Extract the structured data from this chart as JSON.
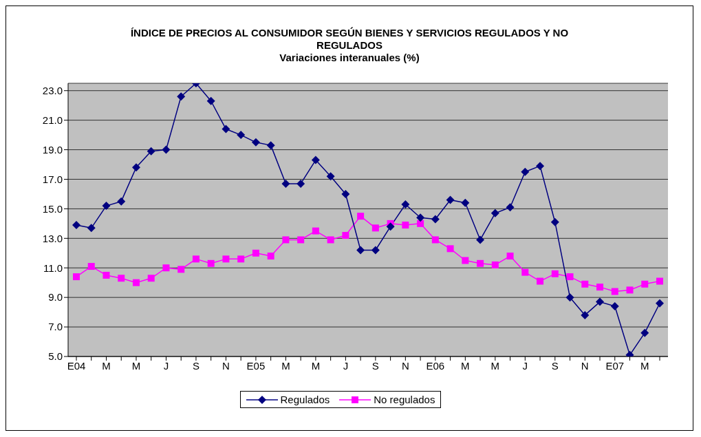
{
  "chart_data": {
    "type": "line",
    "title": "ÍNDICE DE PRECIOS AL CONSUMIDOR SEGÚN BIENES Y SERVICIOS REGULADOS Y NO REGULADOS",
    "subtitle": "Variaciones interanuales (%)",
    "categories": [
      "E04",
      null,
      "M",
      null,
      "M",
      null,
      "J",
      null,
      "S",
      null,
      "N",
      null,
      "E05",
      null,
      "M",
      null,
      "M",
      null,
      "J",
      null,
      "S",
      null,
      "N",
      null,
      "E06",
      null,
      "M",
      null,
      "M",
      null,
      "J",
      null,
      "S",
      null,
      "N",
      null,
      "E07",
      null,
      "M",
      null
    ],
    "series": [
      {
        "name": "Regulados",
        "color": "#000080",
        "marker": "diamond",
        "values": [
          13.9,
          13.7,
          15.2,
          15.5,
          17.8,
          18.9,
          19.0,
          22.6,
          23.5,
          22.3,
          20.4,
          20.0,
          19.5,
          19.3,
          16.7,
          16.7,
          18.3,
          17.2,
          16.0,
          12.2,
          12.2,
          13.8,
          15.3,
          14.4,
          14.3,
          15.6,
          15.4,
          12.9,
          14.7,
          15.1,
          17.5,
          17.9,
          14.1,
          9.0,
          7.8,
          8.7,
          8.4,
          5.1,
          6.6,
          8.6
        ]
      },
      {
        "name": "No regulados",
        "color": "#ff00ff",
        "marker": "square",
        "values": [
          10.4,
          11.1,
          10.5,
          10.3,
          10.0,
          10.3,
          11.0,
          10.9,
          11.6,
          11.3,
          11.6,
          11.6,
          12.0,
          11.8,
          12.9,
          12.9,
          13.5,
          12.9,
          13.2,
          14.5,
          13.7,
          14.0,
          13.9,
          14.0,
          12.9,
          12.3,
          11.5,
          11.3,
          11.2,
          11.8,
          10.7,
          10.1,
          10.6,
          10.4,
          9.9,
          9.7,
          9.4,
          9.5,
          9.9,
          10.1
        ]
      }
    ],
    "ylim": [
      5,
      23.5
    ],
    "yticks": [
      {
        "value": 5,
        "label": "5.0"
      },
      {
        "value": 7,
        "label": "7.0"
      },
      {
        "value": 9,
        "label": "9.0"
      },
      {
        "value": 11,
        "label": "11.0"
      },
      {
        "value": 13,
        "label": "13.0"
      },
      {
        "value": 15,
        "label": "15.0"
      },
      {
        "value": 17,
        "label": "17.0"
      },
      {
        "value": 19,
        "label": "19.0"
      },
      {
        "value": 21,
        "label": "21.0"
      },
      {
        "value": 23,
        "label": "23.0"
      }
    ],
    "grid": "y",
    "legend": "bottom",
    "line_style": "solid"
  }
}
